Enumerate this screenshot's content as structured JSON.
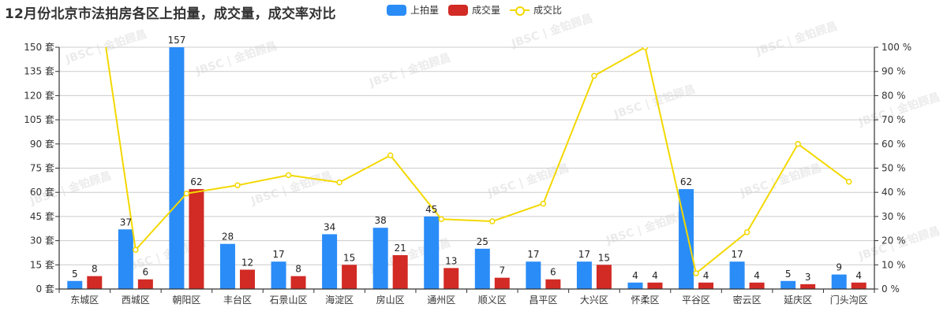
{
  "title": "12月份北京市法拍房各区上拍量，成交量，成交率对比",
  "legend": [
    {
      "name": "上拍量",
      "color": "#2a8cf7",
      "kind": "bar"
    },
    {
      "name": "成交量",
      "color": "#d22a24",
      "kind": "bar"
    },
    {
      "name": "成交比",
      "color": "#f3d800",
      "kind": "line"
    }
  ],
  "watermark": "JBSC | 金铂顾昌",
  "chart_data": {
    "type": "bar",
    "title": "12月份北京市法拍房各区上拍量，成交量，成交率对比",
    "categories": [
      "东城区",
      "西城区",
      "朝阳区",
      "丰台区",
      "石景山区",
      "海淀区",
      "房山区",
      "通州区",
      "顺义区",
      "昌平区",
      "大兴区",
      "怀柔区",
      "平谷区",
      "密云区",
      "延庆区",
      "门头沟区"
    ],
    "series": [
      {
        "name": "上拍量",
        "type": "bar",
        "axis": "left",
        "color": "#2a8cf7",
        "values": [
          5,
          37,
          157,
          28,
          17,
          34,
          38,
          45,
          25,
          17,
          17,
          4,
          62,
          17,
          5,
          9
        ]
      },
      {
        "name": "成交量",
        "type": "bar",
        "axis": "left",
        "color": "#d22a24",
        "values": [
          8,
          6,
          62,
          12,
          8,
          15,
          21,
          13,
          7,
          6,
          15,
          4,
          4,
          4,
          3,
          4
        ]
      },
      {
        "name": "成交比",
        "type": "line",
        "axis": "right",
        "color": "#f3d800",
        "values": [
          160,
          16.2,
          39.5,
          42.9,
          47.1,
          44.1,
          55.3,
          28.9,
          28,
          35.3,
          88.2,
          100,
          6.5,
          23.5,
          60,
          44.4
        ]
      }
    ],
    "y_left": {
      "min": 0,
      "max": 150,
      "interval": 15,
      "unit": " 套",
      "ticks": [
        "0 套",
        "15 套",
        "30 套",
        "45 套",
        "60 套",
        "75 套",
        "90 套",
        "105 套",
        "120 套",
        "135 套",
        "150 套"
      ]
    },
    "y_right": {
      "min": 0,
      "max": 100,
      "interval": 10,
      "unit": " %",
      "ticks": [
        "0 %",
        "10 %",
        "20 %",
        "30 %",
        "40 %",
        "50 %",
        "60 %",
        "70 %",
        "80 %",
        "90 %",
        "100 %"
      ]
    },
    "xlabel": "",
    "ylabel": "",
    "grid": true,
    "legend_position": "top"
  }
}
